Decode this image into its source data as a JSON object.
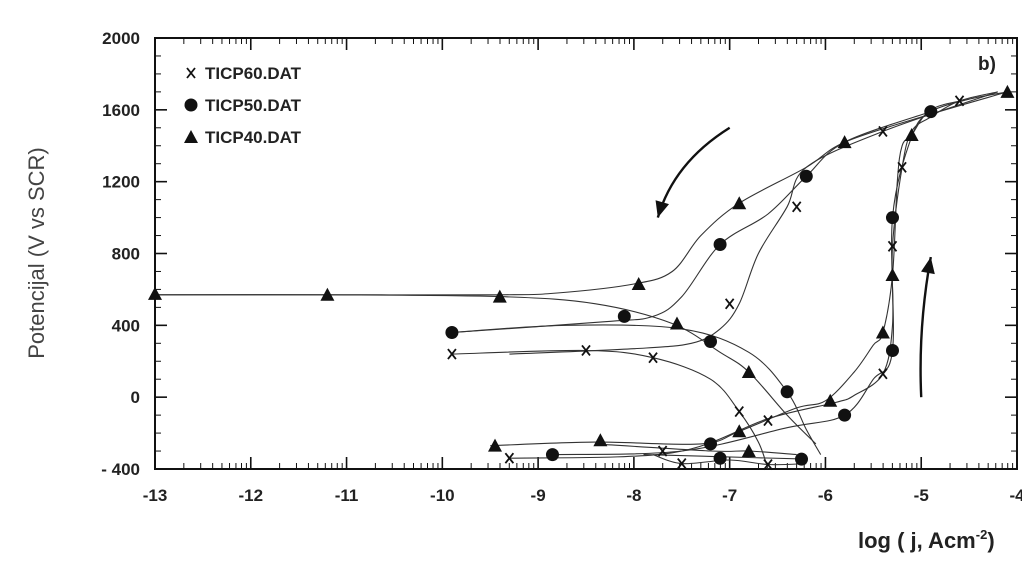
{
  "chart_data": {
    "type": "line",
    "panel_label": "b)",
    "xlabel": "log ( j, Acm",
    "xlabel_sup": "-2",
    "xlabel_close": ")",
    "ylabel": "Potencijal (V vs SCR)",
    "xlim": [
      -13,
      -4
    ],
    "ylim": [
      -400,
      2000
    ],
    "x_ticks": [
      "-13",
      "-12",
      "-11",
      "-10",
      "-9",
      "-8",
      "-7",
      "-6",
      "-5",
      "-4"
    ],
    "y_ticks": [
      "- 400",
      "0",
      "400",
      "800",
      "1200",
      "1600",
      "2000"
    ],
    "legend_position": "top-left",
    "series": [
      {
        "name": "TICP60.DAT",
        "marker": "x",
        "scan_down": [
          [
            -9.9,
            240
          ],
          [
            -8.5,
            260
          ],
          [
            -7.8,
            220
          ],
          [
            -7.2,
            100
          ],
          [
            -6.9,
            -80
          ],
          [
            -6.7,
            -250
          ],
          [
            -6.6,
            -400
          ]
        ],
        "scan_up": [
          [
            -9.3,
            -340
          ],
          [
            -7.6,
            -310
          ],
          [
            -6.6,
            -120
          ],
          [
            -5.9,
            -30
          ],
          [
            -5.7,
            10
          ],
          [
            -5.4,
            130
          ],
          [
            -5.3,
            400
          ],
          [
            -5.3,
            840
          ],
          [
            -5.2,
            1280
          ],
          [
            -5.1,
            1480
          ],
          [
            -4.9,
            1560
          ],
          [
            -4.6,
            1650
          ],
          [
            -4.2,
            1700
          ]
        ],
        "reverse": [
          [
            -4.2,
            1700
          ],
          [
            -5.4,
            1480
          ],
          [
            -6.2,
            1280
          ],
          [
            -6.4,
            1060
          ],
          [
            -6.7,
            800
          ],
          [
            -6.9,
            520
          ],
          [
            -7.1,
            380
          ],
          [
            -7.4,
            300
          ],
          [
            -8.0,
            270
          ],
          [
            -9.3,
            240
          ]
        ],
        "tail": [
          [
            -7.8,
            -320
          ],
          [
            -7.5,
            -370
          ],
          [
            -7.0,
            -350
          ],
          [
            -6.6,
            -375
          ],
          [
            -6.2,
            -370
          ]
        ],
        "markers": [
          [
            -9.9,
            240
          ],
          [
            -8.5,
            260
          ],
          [
            -7.8,
            220
          ],
          [
            -6.9,
            -80
          ],
          [
            -9.3,
            -340
          ],
          [
            -7.7,
            -300
          ],
          [
            -6.6,
            -130
          ],
          [
            -5.4,
            130
          ],
          [
            -5.3,
            840
          ],
          [
            -5.2,
            1280
          ],
          [
            -5.4,
            1480
          ],
          [
            -4.6,
            1650
          ],
          [
            -6.3,
            1060
          ],
          [
            -7.0,
            520
          ],
          [
            -7.5,
            -370
          ],
          [
            -6.6,
            -375
          ]
        ]
      },
      {
        "name": "TICP50.DAT",
        "marker": "circle",
        "scan_down": [
          [
            -9.9,
            360
          ],
          [
            -8.7,
            400
          ],
          [
            -7.5,
            380
          ],
          [
            -6.8,
            250
          ],
          [
            -6.4,
            30
          ],
          [
            -6.2,
            -180
          ],
          [
            -6.05,
            -320
          ]
        ],
        "scan_up": [
          [
            -8.85,
            -320
          ],
          [
            -7.5,
            -300
          ],
          [
            -6.4,
            -170
          ],
          [
            -5.8,
            -100
          ],
          [
            -5.5,
            100
          ],
          [
            -5.3,
            260
          ],
          [
            -5.3,
            1000
          ],
          [
            -5.1,
            1450
          ],
          [
            -4.9,
            1590
          ],
          [
            -4.5,
            1660
          ]
        ],
        "reverse": [
          [
            -4.9,
            1590
          ],
          [
            -5.8,
            1420
          ],
          [
            -6.2,
            1230
          ],
          [
            -6.6,
            1020
          ],
          [
            -7.1,
            850
          ],
          [
            -7.5,
            560
          ],
          [
            -7.8,
            450
          ],
          [
            -8.3,
            420
          ],
          [
            -9.9,
            360
          ]
        ],
        "tail": [
          [
            -7.9,
            -320
          ],
          [
            -7.2,
            -330
          ],
          [
            -6.2,
            -345
          ]
        ],
        "markers": [
          [
            -9.9,
            360
          ],
          [
            -8.1,
            450
          ],
          [
            -7.2,
            310
          ],
          [
            -6.4,
            30
          ],
          [
            -5.8,
            -100
          ],
          [
            -5.3,
            260
          ],
          [
            -5.3,
            1000
          ],
          [
            -4.9,
            1590
          ],
          [
            -6.2,
            1230
          ],
          [
            -7.1,
            850
          ],
          [
            -8.85,
            -320
          ],
          [
            -7.2,
            -260
          ],
          [
            -7.1,
            -340
          ],
          [
            -6.25,
            -345
          ]
        ]
      },
      {
        "name": "TICP40.DAT",
        "marker": "triangle",
        "scan_down": [
          [
            -13.0,
            570
          ],
          [
            -11.2,
            570
          ],
          [
            -9.4,
            560
          ],
          [
            -8.4,
            520
          ],
          [
            -7.6,
            410
          ],
          [
            -7.1,
            250
          ],
          [
            -6.8,
            140
          ],
          [
            -6.4,
            -100
          ],
          [
            -6.1,
            -260
          ]
        ],
        "scan_up": [
          [
            -9.5,
            -270
          ],
          [
            -8.4,
            -250
          ],
          [
            -7.3,
            -260
          ],
          [
            -6.9,
            -190
          ],
          [
            -6.3,
            -60
          ],
          [
            -6.0,
            -20
          ],
          [
            -5.7,
            140
          ],
          [
            -5.5,
            290
          ],
          [
            -5.4,
            360
          ],
          [
            -5.3,
            680
          ],
          [
            -5.25,
            1200
          ],
          [
            -5.2,
            1400
          ],
          [
            -5.1,
            1460
          ],
          [
            -4.9,
            1600
          ],
          [
            -4.5,
            1660
          ],
          [
            -4.1,
            1700
          ]
        ],
        "reverse": [
          [
            -4.1,
            1700
          ],
          [
            -5.0,
            1560
          ],
          [
            -5.8,
            1420
          ],
          [
            -6.2,
            1280
          ],
          [
            -6.9,
            1080
          ],
          [
            -7.3,
            900
          ],
          [
            -7.6,
            700
          ],
          [
            -8.0,
            630
          ],
          [
            -8.8,
            580
          ],
          [
            -9.4,
            570
          ],
          [
            -11.2,
            570
          ],
          [
            -13.0,
            570
          ]
        ],
        "tail": [
          [
            -8.4,
            -260
          ],
          [
            -7.2,
            -300
          ],
          [
            -6.8,
            -300
          ],
          [
            -6.3,
            -320
          ]
        ],
        "markers": [
          [
            -13.0,
            575
          ],
          [
            -11.2,
            570
          ],
          [
            -9.4,
            560
          ],
          [
            -7.55,
            410
          ],
          [
            -6.8,
            140
          ],
          [
            -5.95,
            -20
          ],
          [
            -9.45,
            -270
          ],
          [
            -8.35,
            -240
          ],
          [
            -6.9,
            -190
          ],
          [
            -6.8,
            -300
          ],
          [
            -5.4,
            360
          ],
          [
            -5.3,
            680
          ],
          [
            -5.1,
            1460
          ],
          [
            -4.1,
            1700
          ],
          [
            -7.95,
            630
          ],
          [
            -6.9,
            1080
          ],
          [
            -5.8,
            1420
          ]
        ]
      }
    ],
    "annotations": [
      {
        "label": "arrow-down-left",
        "from": [
          -7.0,
          1500
        ],
        "to": [
          -7.75,
          1000
        ]
      },
      {
        "label": "arrow-up",
        "from": [
          -5.0,
          0
        ],
        "to": [
          -4.9,
          780
        ]
      }
    ]
  }
}
